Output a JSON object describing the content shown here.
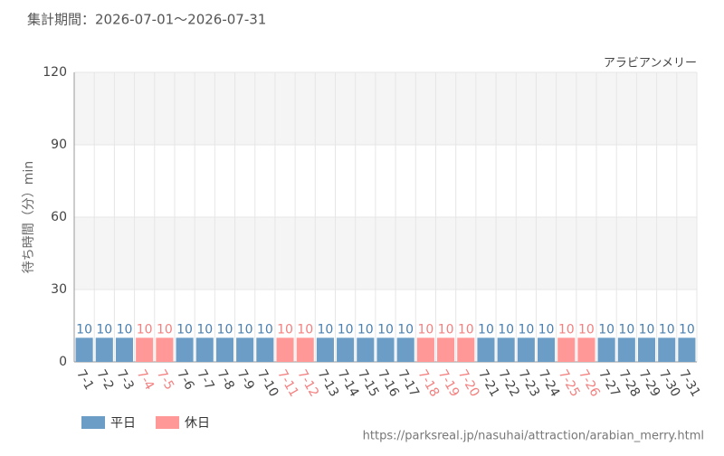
{
  "chart_data": {
    "type": "bar",
    "title": "集計期間：2026-07-01～2026-07-31",
    "subtitle": "アラビアンメリー",
    "y_label": "待ち時間（分）min",
    "source": "https://parksreal.jp/nasuhai/attraction/arabian_merry.html",
    "categories": [
      "7-1",
      "7-2",
      "7-3",
      "7-4",
      "7-5",
      "7-6",
      "7-7",
      "7-8",
      "7-9",
      "7-10",
      "7-11",
      "7-12",
      "7-13",
      "7-14",
      "7-15",
      "7-16",
      "7-17",
      "7-18",
      "7-19",
      "7-20",
      "7-21",
      "7-22",
      "7-23",
      "7-24",
      "7-25",
      "7-26",
      "7-27",
      "7-28",
      "7-29",
      "7-30",
      "7-31"
    ],
    "series": [
      {
        "name": "平日",
        "color": "#6b9dc6",
        "label_color": "#4a7fb0",
        "values": [
          10,
          10,
          10,
          null,
          null,
          10,
          10,
          10,
          10,
          10,
          null,
          null,
          10,
          10,
          10,
          10,
          10,
          null,
          null,
          null,
          10,
          10,
          10,
          10,
          null,
          null,
          10,
          10,
          10,
          10,
          10
        ]
      },
      {
        "name": "休日",
        "color": "#ff9896",
        "label_color": "#f47f7f",
        "values": [
          null,
          null,
          null,
          10,
          10,
          null,
          null,
          null,
          null,
          null,
          10,
          10,
          null,
          null,
          null,
          null,
          null,
          10,
          10,
          10,
          null,
          null,
          null,
          null,
          10,
          10,
          null,
          null,
          null,
          null,
          null
        ]
      }
    ],
    "ylim": [
      0,
      120
    ],
    "yticks": [
      0,
      30,
      60,
      90,
      120
    ],
    "grid": true
  }
}
